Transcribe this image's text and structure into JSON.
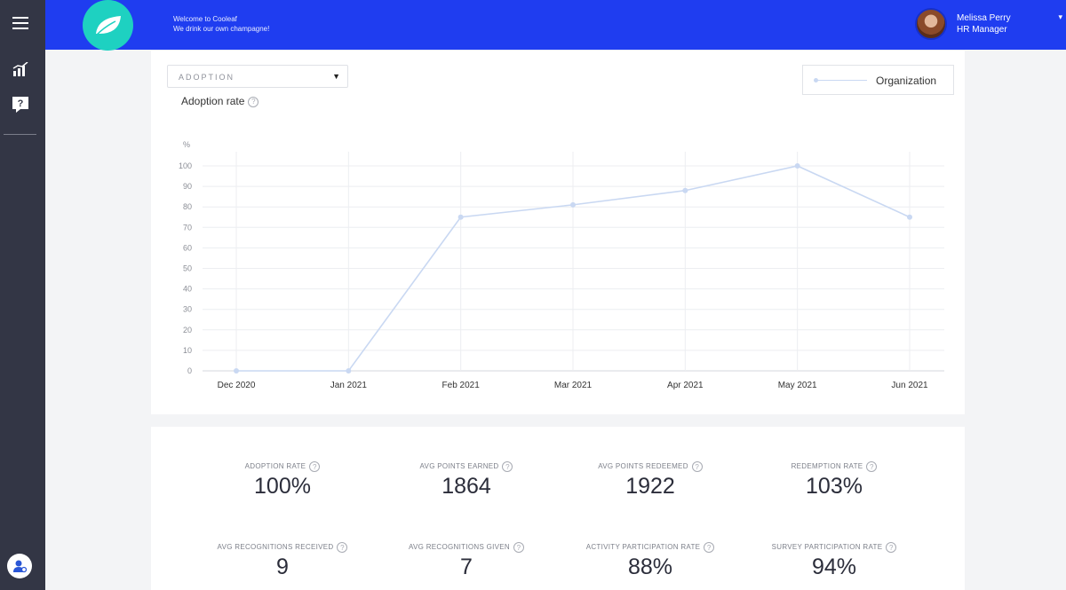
{
  "header": {
    "welcome_line1": "Welcome to Cooleaf",
    "welcome_line2": "We drink our own champagne!",
    "user_name": "Melissa Perry",
    "user_role": "HR Manager",
    "brand_color": "#1f3df0",
    "logo_color": "#1ed1c1"
  },
  "sidebar": {
    "items": [
      {
        "icon": "menu-icon"
      },
      {
        "icon": "analytics-icon"
      },
      {
        "icon": "help-icon"
      },
      {
        "icon": "user-settings-icon"
      }
    ]
  },
  "filter": {
    "selected": "ADOPTION"
  },
  "chart_title": "Adoption rate",
  "chart_data": {
    "type": "line",
    "title": "Adoption rate",
    "ylabel": "%",
    "xlabel": "",
    "categories": [
      "Dec 2020",
      "Jan 2021",
      "Feb 2021",
      "Mar 2021",
      "Apr 2021",
      "May 2021",
      "Jun 2021"
    ],
    "series": [
      {
        "name": "Organization",
        "values": [
          0,
          0,
          75,
          81,
          88,
          100,
          75
        ],
        "color": "#c9d8f2"
      }
    ],
    "yticks": [
      0,
      10,
      20,
      30,
      40,
      50,
      60,
      70,
      80,
      90,
      100
    ],
    "ylim": [
      0,
      100
    ],
    "grid": true,
    "legend": "top-right"
  },
  "stats": [
    {
      "label": "ADOPTION RATE",
      "value": "100%"
    },
    {
      "label": "AVG POINTS EARNED",
      "value": "1864"
    },
    {
      "label": "AVG POINTS REDEEMED",
      "value": "1922"
    },
    {
      "label": "REDEMPTION RATE",
      "value": "103%"
    },
    {
      "label": "AVG RECOGNITIONS RECEIVED",
      "value": "9"
    },
    {
      "label": "AVG RECOGNITIONS GIVEN",
      "value": "7"
    },
    {
      "label": "ACTIVITY PARTICIPATION RATE",
      "value": "88%"
    },
    {
      "label": "SURVEY PARTICIPATION RATE",
      "value": "94%"
    }
  ]
}
